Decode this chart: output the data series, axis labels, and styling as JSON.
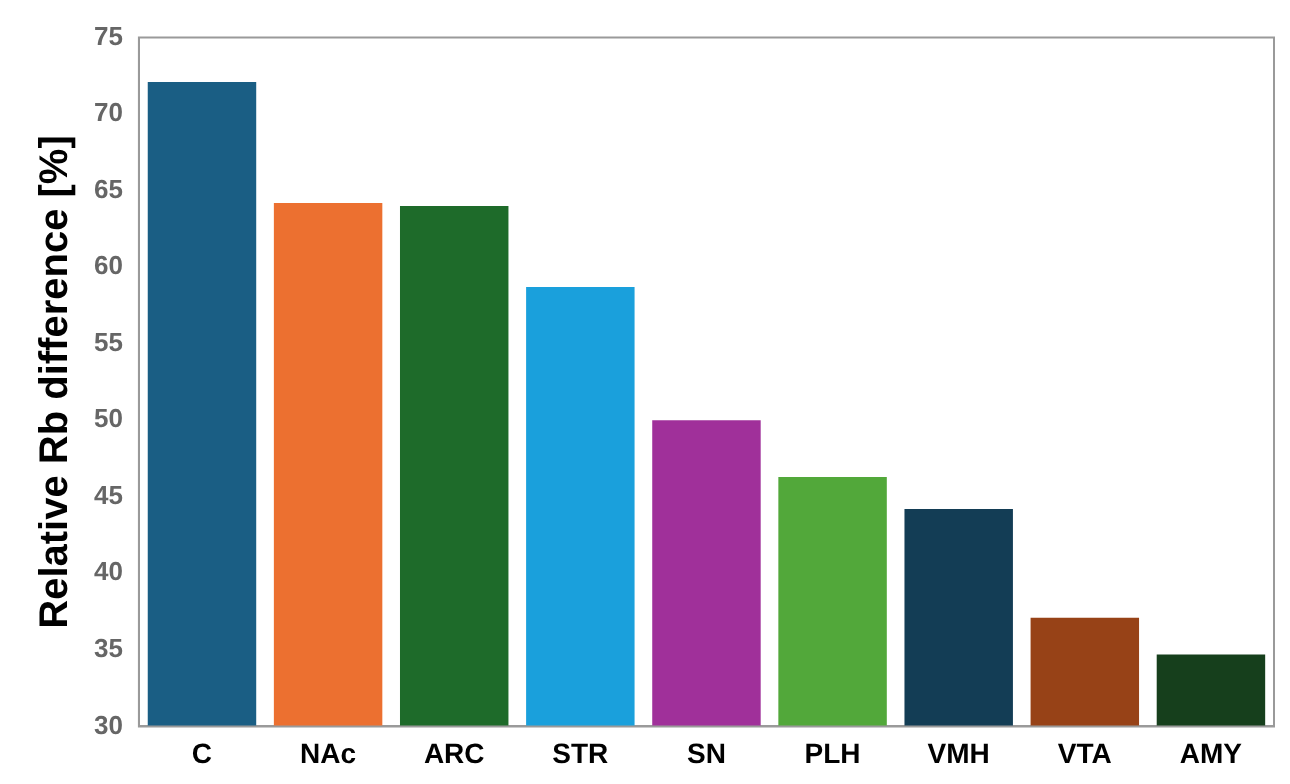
{
  "chart_data": {
    "type": "bar",
    "ylabel": "Relative Rb difference [%]",
    "categories": [
      "C",
      "NAc",
      "ARC",
      "STR",
      "SN",
      "PLH",
      "VMH",
      "VTA",
      "AMY"
    ],
    "values": [
      72.1,
      64.2,
      64.0,
      58.7,
      50.0,
      46.3,
      44.2,
      37.1,
      34.7
    ],
    "colors": [
      "#1a5e84",
      "#ec7030",
      "#1e6b2a",
      "#1aa0dc",
      "#a0309a",
      "#52a83a",
      "#133d55",
      "#974217",
      "#163f1c"
    ],
    "ylim": [
      30,
      75
    ],
    "yticks": [
      30,
      35,
      40,
      45,
      50,
      55,
      60,
      65,
      70,
      75
    ],
    "grid": false,
    "legend": false
  }
}
